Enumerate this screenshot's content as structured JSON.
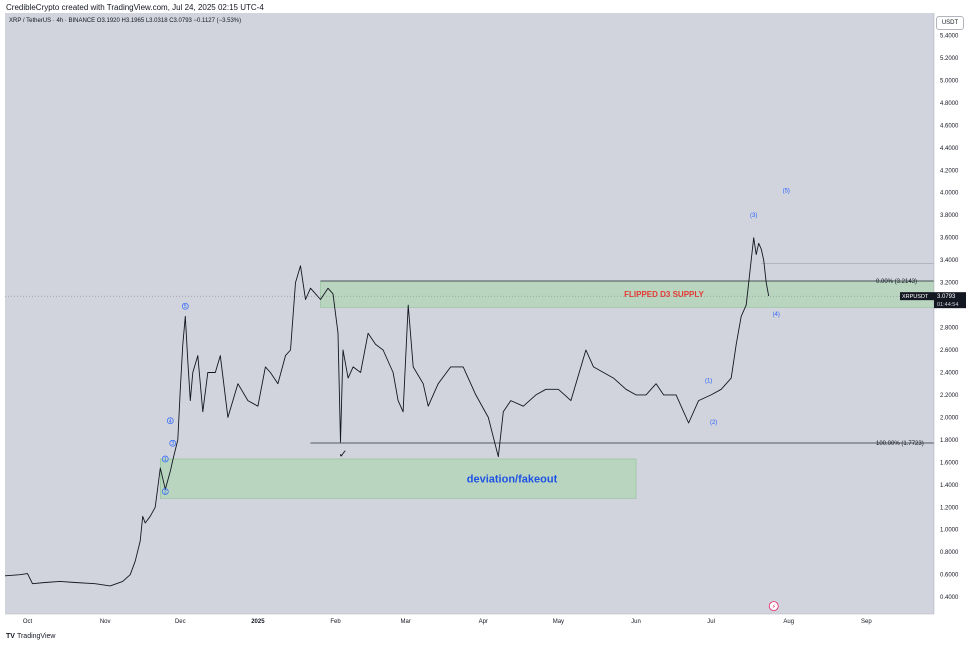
{
  "header": {
    "author_line": "CredibleCrypto created with TradingView.com, Jul 24, 2025 02:15 UTC-4",
    "symbol_line": "XRP / TetherUS · 4h · BINANCE   O3.1920  H3.1965  L3.0318  C3.0793  −0.1127 (−3.53%)"
  },
  "footer": {
    "brand": "TradingView",
    "brand_icon": "tradingview-logo-icon"
  },
  "price_scale": {
    "unit": "USDT"
  },
  "colors": {
    "background": "#d1d4dc",
    "candles": "#131722",
    "zone_fill": "#a5d6a7",
    "wave_labels": "#2962ff",
    "supply_text": "#e53935",
    "deviation_text": "#1e53e5",
    "last_price_bg": "#131722"
  },
  "chart_data": {
    "type": "line",
    "symbol": "XRP / TetherUS",
    "interval": "4h",
    "exchange": "BINANCE",
    "x_tick_labels": [
      "Oct",
      "Nov",
      "Dec",
      "2025",
      "Feb",
      "Mar",
      "Apr",
      "May",
      "Jun",
      "Jul",
      "Aug",
      "Sep"
    ],
    "y_tick_values": [
      0.4,
      0.6,
      0.8,
      1.0,
      1.2,
      1.4,
      1.6,
      1.8,
      2.0,
      2.2,
      2.4,
      2.6,
      2.8,
      3.0,
      3.2,
      3.4,
      3.6,
      3.8,
      4.0,
      4.2,
      4.4,
      4.6,
      4.8,
      5.0,
      5.2,
      5.4
    ],
    "y_tick_labels": [
      "0.4000",
      "0.6000",
      "0.8000",
      "1.0000",
      "1.2000",
      "1.4000",
      "1.6000",
      "1.8000",
      "2.0000",
      "2.2000",
      "2.4000",
      "2.6000",
      "2.8000",
      "3.0000",
      "3.2000",
      "3.4000",
      "3.6000",
      "3.8000",
      "4.0000",
      "4.2000",
      "4.4000",
      "4.6000",
      "4.8000",
      "5.0000",
      "5.2000",
      "5.4000"
    ],
    "ylim": [
      0.25,
      5.6
    ],
    "xlim": [
      "2024-09-22",
      "2025-09-28"
    ],
    "price_series": [
      [
        "2024-09-22",
        0.59
      ],
      [
        "2024-09-28",
        0.6
      ],
      [
        "2024-10-01",
        0.61
      ],
      [
        "2024-10-03",
        0.52
      ],
      [
        "2024-10-08",
        0.53
      ],
      [
        "2024-10-14",
        0.54
      ],
      [
        "2024-10-20",
        0.53
      ],
      [
        "2024-10-28",
        0.52
      ],
      [
        "2024-11-03",
        0.5
      ],
      [
        "2024-11-08",
        0.54
      ],
      [
        "2024-11-11",
        0.6
      ],
      [
        "2024-11-13",
        0.72
      ],
      [
        "2024-11-15",
        0.9
      ],
      [
        "2024-11-16",
        1.12
      ],
      [
        "2024-11-17",
        1.06
      ],
      [
        "2024-11-19",
        1.12
      ],
      [
        "2024-11-21",
        1.2
      ],
      [
        "2024-11-23",
        1.55
      ],
      [
        "2024-11-25",
        1.36
      ],
      [
        "2024-11-27",
        1.52
      ],
      [
        "2024-11-28",
        1.62
      ],
      [
        "2024-11-30",
        1.8
      ],
      [
        "2024-12-01",
        2.25
      ],
      [
        "2024-12-02",
        2.65
      ],
      [
        "2024-12-03",
        2.9
      ],
      [
        "2024-12-04",
        2.5
      ],
      [
        "2024-12-05",
        2.15
      ],
      [
        "2024-12-06",
        2.4
      ],
      [
        "2024-12-08",
        2.55
      ],
      [
        "2024-12-10",
        2.05
      ],
      [
        "2024-12-12",
        2.4
      ],
      [
        "2024-12-15",
        2.4
      ],
      [
        "2024-12-17",
        2.55
      ],
      [
        "2024-12-20",
        2.0
      ],
      [
        "2024-12-24",
        2.3
      ],
      [
        "2024-12-28",
        2.15
      ],
      [
        "2025-01-01",
        2.1
      ],
      [
        "2025-01-04",
        2.45
      ],
      [
        "2025-01-06",
        2.4
      ],
      [
        "2025-01-09",
        2.3
      ],
      [
        "2025-01-12",
        2.55
      ],
      [
        "2025-01-14",
        2.6
      ],
      [
        "2025-01-16",
        3.2
      ],
      [
        "2025-01-18",
        3.35
      ],
      [
        "2025-01-20",
        3.05
      ],
      [
        "2025-01-22",
        3.15
      ],
      [
        "2025-01-24",
        3.1
      ],
      [
        "2025-01-26",
        3.05
      ],
      [
        "2025-01-29",
        3.15
      ],
      [
        "2025-01-31",
        3.1
      ],
      [
        "2025-02-02",
        2.75
      ],
      [
        "2025-02-03",
        1.78
      ],
      [
        "2025-02-04",
        2.6
      ],
      [
        "2025-02-06",
        2.35
      ],
      [
        "2025-02-08",
        2.45
      ],
      [
        "2025-02-11",
        2.4
      ],
      [
        "2025-02-14",
        2.75
      ],
      [
        "2025-02-17",
        2.65
      ],
      [
        "2025-02-20",
        2.6
      ],
      [
        "2025-02-24",
        2.4
      ],
      [
        "2025-02-26",
        2.15
      ],
      [
        "2025-02-28",
        2.05
      ],
      [
        "2025-03-02",
        3.0
      ],
      [
        "2025-03-04",
        2.45
      ],
      [
        "2025-03-08",
        2.3
      ],
      [
        "2025-03-10",
        2.1
      ],
      [
        "2025-03-14",
        2.3
      ],
      [
        "2025-03-19",
        2.45
      ],
      [
        "2025-03-24",
        2.45
      ],
      [
        "2025-03-29",
        2.2
      ],
      [
        "2025-04-03",
        2.0
      ],
      [
        "2025-04-07",
        1.65
      ],
      [
        "2025-04-09",
        2.05
      ],
      [
        "2025-04-12",
        2.15
      ],
      [
        "2025-04-17",
        2.1
      ],
      [
        "2025-04-22",
        2.2
      ],
      [
        "2025-04-26",
        2.25
      ],
      [
        "2025-05-01",
        2.25
      ],
      [
        "2025-05-06",
        2.15
      ],
      [
        "2025-05-10",
        2.45
      ],
      [
        "2025-05-12",
        2.6
      ],
      [
        "2025-05-15",
        2.45
      ],
      [
        "2025-05-19",
        2.4
      ],
      [
        "2025-05-23",
        2.35
      ],
      [
        "2025-05-28",
        2.25
      ],
      [
        "2025-06-01",
        2.2
      ],
      [
        "2025-06-05",
        2.2
      ],
      [
        "2025-06-09",
        2.3
      ],
      [
        "2025-06-12",
        2.2
      ],
      [
        "2025-06-17",
        2.2
      ],
      [
        "2025-06-22",
        1.95
      ],
      [
        "2025-06-26",
        2.15
      ],
      [
        "2025-07-01",
        2.2
      ],
      [
        "2025-07-05",
        2.25
      ],
      [
        "2025-07-09",
        2.35
      ],
      [
        "2025-07-11",
        2.65
      ],
      [
        "2025-07-13",
        2.9
      ],
      [
        "2025-07-15",
        3.0
      ],
      [
        "2025-07-17",
        3.4
      ],
      [
        "2025-07-18",
        3.6
      ],
      [
        "2025-07-19",
        3.45
      ],
      [
        "2025-07-20",
        3.55
      ],
      [
        "2025-07-21",
        3.5
      ],
      [
        "2025-07-22",
        3.4
      ],
      [
        "2025-07-23",
        3.2
      ],
      [
        "2025-07-24",
        3.08
      ]
    ],
    "last_price": {
      "symbol": "XRPUSDT",
      "value": 3.0793,
      "value_label": "3.0793",
      "countdown": "01:44:54"
    },
    "zones": [
      {
        "name": "flipped-d3-supply",
        "label": "FLIPPED D3 SUPPLY",
        "x_start": "2025-01-26",
        "x_end": "2025-09-28",
        "y_low": 2.98,
        "y_high": 3.2143
      },
      {
        "name": "deviation-fakeout",
        "label": "deviation/fakeout",
        "x_start": "2024-11-23",
        "x_end": "2025-06-01",
        "y_low": 1.28,
        "y_high": 1.63
      }
    ],
    "fib_levels": [
      {
        "label": "0.00% (3.2143)",
        "value": 3.2143,
        "x_start": "2025-01-26"
      },
      {
        "label": "100.00% (1.7723)",
        "value": 1.7723,
        "x_start": "2025-01-22"
      }
    ],
    "reference_line": {
      "value": 3.37,
      "x_start": "2025-07-21"
    },
    "wave_labels_left": [
      {
        "label": "1",
        "x": "2024-11-25",
        "y": 1.63
      },
      {
        "label": "2",
        "x": "2024-11-25",
        "y": 1.34
      },
      {
        "label": "3",
        "x": "2024-11-28",
        "y": 1.77
      },
      {
        "label": "4",
        "x": "2024-11-27",
        "y": 1.97
      },
      {
        "label": "5",
        "x": "2024-12-03",
        "y": 2.99
      }
    ],
    "wave_labels_right": [
      {
        "label": "(1)",
        "x": "2025-06-30",
        "y": 2.33
      },
      {
        "label": "(2)",
        "x": "2025-07-02",
        "y": 1.96
      },
      {
        "label": "(3)",
        "x": "2025-07-18",
        "y": 3.8
      },
      {
        "label": "(4)",
        "x": "2025-07-27",
        "y": 2.92
      },
      {
        "label": "(5)",
        "x": "2025-07-31",
        "y": 4.02
      }
    ],
    "annotations": [
      {
        "name": "checkmark",
        "text": "✓",
        "x": "2025-02-04",
        "y": 1.68
      },
      {
        "name": "event-icon",
        "text": "⚡",
        "x": "2025-07-26",
        "y": 0.32
      }
    ]
  }
}
